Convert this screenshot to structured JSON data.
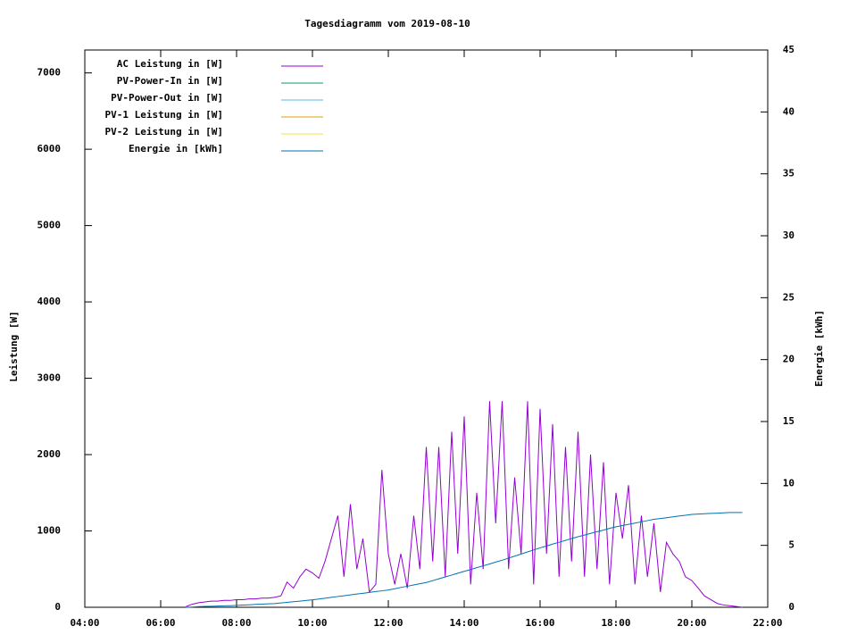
{
  "chart_data": {
    "type": "line",
    "title": "Tagesdiagramm vom 2019-08-10",
    "y_label": "Leistung [W]",
    "y2_label": "Energie [kWh]",
    "xlim": [
      4,
      22
    ],
    "xticks": [
      {
        "value": 4,
        "label": "04:00"
      },
      {
        "value": 6,
        "label": "06:00"
      },
      {
        "value": 8,
        "label": "08:00"
      },
      {
        "value": 10,
        "label": "10:00"
      },
      {
        "value": 12,
        "label": "12:00"
      },
      {
        "value": 14,
        "label": "14:00"
      },
      {
        "value": 16,
        "label": "16:00"
      },
      {
        "value": 18,
        "label": "18:00"
      },
      {
        "value": 20,
        "label": "20:00"
      },
      {
        "value": 22,
        "label": "22:00"
      }
    ],
    "ylim": [
      0,
      7300
    ],
    "yticks": [
      0,
      1000,
      2000,
      3000,
      4000,
      5000,
      6000,
      7000
    ],
    "y2lim": [
      0,
      45
    ],
    "y2ticks": [
      0,
      5,
      10,
      15,
      20,
      25,
      30,
      35,
      40,
      45
    ],
    "legend": "top-left",
    "x": [
      6.67,
      6.83,
      7,
      7.17,
      7.33,
      7.5,
      7.67,
      7.83,
      8,
      8.17,
      8.33,
      8.5,
      8.67,
      8.83,
      9,
      9.17,
      9.33,
      9.5,
      9.67,
      9.83,
      10,
      10.17,
      10.33,
      10.5,
      10.67,
      10.83,
      11,
      11.17,
      11.33,
      11.5,
      11.67,
      11.83,
      12,
      12.17,
      12.33,
      12.5,
      12.67,
      12.83,
      13,
      13.17,
      13.33,
      13.5,
      13.67,
      13.83,
      14,
      14.17,
      14.33,
      14.5,
      14.67,
      14.83,
      15,
      15.17,
      15.33,
      15.5,
      15.67,
      15.83,
      16,
      16.17,
      16.33,
      16.5,
      16.67,
      16.83,
      17,
      17.17,
      17.33,
      17.5,
      17.67,
      17.83,
      18,
      18.17,
      18.33,
      18.5,
      18.67,
      18.83,
      19,
      19.17,
      19.33,
      19.5,
      19.67,
      19.83,
      20,
      20.17,
      20.33,
      20.5,
      20.67,
      20.83,
      21,
      21.17,
      21.33
    ],
    "series": [
      {
        "name": "AC Leistung in [W]",
        "color": "#9400d3",
        "values": [
          10,
          40,
          60,
          70,
          80,
          80,
          90,
          90,
          100,
          100,
          110,
          110,
          120,
          120,
          130,
          150,
          330,
          250,
          400,
          500,
          450,
          380,
          600,
          900,
          1200,
          400,
          1350,
          500,
          900,
          200,
          300,
          1800,
          700,
          300,
          700,
          250,
          1200,
          500,
          2100,
          600,
          2100,
          400,
          2300,
          700,
          2500,
          300,
          1500,
          500,
          2700,
          1100,
          2700,
          500,
          1700,
          700,
          2700,
          300,
          2600,
          700,
          2400,
          400,
          2100,
          600,
          2300,
          400,
          2000,
          500,
          1900,
          300,
          1500,
          900,
          1600,
          300,
          1200,
          400,
          1100,
          200,
          850,
          700,
          600,
          400,
          350,
          250,
          150,
          100,
          50,
          30,
          20,
          10,
          0
        ]
      },
      {
        "name": "PV-Power-In in [W]",
        "color": "#009e73",
        "values": [
          null,
          null,
          null,
          null,
          null,
          null,
          null,
          null,
          null,
          null,
          null,
          null,
          null,
          null,
          null,
          null,
          null,
          null,
          null,
          null,
          null,
          null,
          null,
          null,
          null,
          null,
          null,
          null,
          null,
          null,
          null,
          null,
          null,
          null,
          null,
          null,
          null,
          null,
          null,
          null,
          null,
          null,
          null,
          null,
          null,
          null,
          null,
          null,
          null,
          null,
          null,
          null,
          null,
          null,
          null,
          null,
          null,
          null,
          null,
          null,
          null,
          null,
          null,
          null,
          null,
          null,
          null,
          null,
          null,
          null,
          null,
          null,
          null,
          null,
          null,
          null,
          null,
          null,
          null,
          null,
          null,
          null,
          null,
          null,
          null,
          null,
          null,
          null,
          null
        ]
      },
      {
        "name": "PV-Power-Out in [W]",
        "color": "#56b4e9",
        "values": [
          null,
          null,
          null,
          null,
          null,
          null,
          null,
          null,
          null,
          null,
          null,
          null,
          null,
          null,
          null,
          null,
          null,
          null,
          null,
          null,
          null,
          null,
          null,
          null,
          null,
          null,
          null,
          null,
          null,
          null,
          null,
          null,
          null,
          null,
          null,
          null,
          null,
          null,
          null,
          null,
          null,
          null,
          null,
          null,
          null,
          null,
          null,
          null,
          null,
          null,
          null,
          null,
          null,
          null,
          null,
          null,
          null,
          null,
          null,
          null,
          null,
          null,
          null,
          null,
          null,
          null,
          null,
          null,
          null,
          null,
          null,
          null,
          null,
          null,
          null,
          null,
          null,
          null,
          null,
          null,
          null,
          null,
          null,
          null,
          null,
          null,
          null,
          null,
          null
        ]
      },
      {
        "name": "PV-1 Leistung in [W]",
        "color": "#e69f00",
        "values": [
          null,
          null,
          null,
          null,
          null,
          null,
          null,
          null,
          null,
          null,
          null,
          null,
          null,
          null,
          null,
          null,
          null,
          null,
          null,
          null,
          null,
          null,
          null,
          null,
          null,
          null,
          null,
          null,
          null,
          null,
          null,
          null,
          null,
          null,
          null,
          null,
          null,
          null,
          null,
          null,
          null,
          null,
          null,
          null,
          null,
          null,
          null,
          null,
          null,
          null,
          null,
          null,
          null,
          null,
          null,
          null,
          null,
          null,
          null,
          null,
          null,
          null,
          null,
          null,
          null,
          null,
          null,
          null,
          null,
          null,
          null,
          null,
          null,
          null,
          null,
          null,
          null,
          null,
          null,
          null,
          null,
          null,
          null,
          null,
          null,
          null,
          null,
          null,
          null
        ]
      },
      {
        "name": "PV-2 Leistung in [W]",
        "color": "#f0e442",
        "values": [
          null,
          null,
          null,
          null,
          null,
          null,
          null,
          null,
          null,
          null,
          null,
          null,
          null,
          null,
          null,
          null,
          null,
          null,
          null,
          null,
          null,
          null,
          null,
          null,
          null,
          null,
          null,
          null,
          null,
          null,
          null,
          null,
          null,
          null,
          null,
          null,
          null,
          null,
          null,
          null,
          null,
          null,
          null,
          null,
          null,
          null,
          null,
          null,
          null,
          null,
          null,
          null,
          null,
          null,
          null,
          null,
          null,
          null,
          null,
          null,
          null,
          null,
          null,
          null,
          null,
          null,
          null,
          null,
          null,
          null,
          null,
          null,
          null,
          null,
          null,
          null,
          null,
          null,
          null,
          null,
          null,
          null,
          null,
          null,
          null,
          null,
          null,
          null,
          null
        ]
      },
      {
        "name": "Energie in [kWh]",
        "color": "#0072b2",
        "axis": "y2",
        "values": [
          0,
          0.02,
          0.05,
          0.07,
          0.08,
          0.1,
          0.12,
          0.13,
          0.15,
          0.18,
          0.2,
          0.23,
          0.25,
          0.28,
          0.3,
          0.35,
          0.4,
          0.45,
          0.5,
          0.55,
          0.6,
          0.67,
          0.73,
          0.8,
          0.87,
          0.93,
          1.0,
          1.07,
          1.13,
          1.2,
          1.27,
          1.33,
          1.4,
          1.5,
          1.6,
          1.7,
          1.8,
          1.9,
          2.0,
          2.15,
          2.3,
          2.45,
          2.6,
          2.75,
          2.9,
          3.05,
          3.2,
          3.35,
          3.5,
          3.65,
          3.8,
          3.97,
          4.13,
          4.3,
          4.47,
          4.63,
          4.8,
          4.95,
          5.1,
          5.25,
          5.4,
          5.55,
          5.7,
          5.83,
          5.97,
          6.1,
          6.23,
          6.37,
          6.5,
          6.6,
          6.7,
          6.8,
          6.9,
          7.0,
          7.1,
          7.17,
          7.23,
          7.3,
          7.37,
          7.43,
          7.5,
          7.53,
          7.55,
          7.58,
          7.6,
          7.63,
          7.65,
          7.65,
          7.65
        ]
      }
    ]
  }
}
